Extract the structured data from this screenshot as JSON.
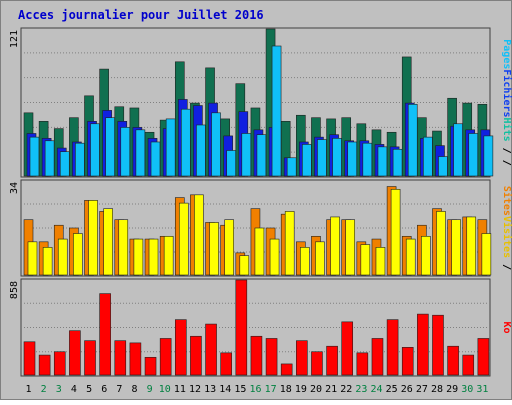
{
  "chart_data": {
    "type": "bar",
    "title": "Acces journalier pour Juillet 2016",
    "colors": {
      "background": "#c0c0c0",
      "title": "#0000cc",
      "grid": "#808080",
      "hits": "#107050",
      "files": "#1020e0",
      "pages": "#10c0f8",
      "visits": "#f08000",
      "sites": "#ffff00",
      "kb": "#ff0000",
      "day_normal": "#000000",
      "day_weekend": "#008040"
    },
    "categories": [
      "1",
      "2",
      "3",
      "4",
      "5",
      "6",
      "7",
      "8",
      "9",
      "10",
      "11",
      "12",
      "13",
      "14",
      "15",
      "16",
      "17",
      "18",
      "19",
      "20",
      "21",
      "22",
      "23",
      "24",
      "25",
      "26",
      "27",
      "28",
      "29",
      "30",
      "31"
    ],
    "weekend_days": [
      "2",
      "3",
      "9",
      "10",
      "16",
      "17",
      "23",
      "24",
      "30",
      "31"
    ],
    "panels": [
      {
        "id": "traffic",
        "ymax_label": "121",
        "ylim": [
          0,
          121
        ],
        "legend": [
          {
            "text": "Hits",
            "color": "#10c0a0"
          },
          {
            "text": "Fichiers",
            "color": "#1040f0"
          },
          {
            "text": "Pages",
            "color": "#10c0f8"
          }
        ],
        "series": [
          {
            "name": "Hits",
            "color": "#107050",
            "values": [
              52,
              45,
              39,
              48,
              66,
              88,
              57,
              56,
              36,
              46,
              94,
              60,
              89,
              47,
              76,
              56,
              121,
              45,
              50,
              48,
              47,
              48,
              43,
              38,
              36,
              98,
              48,
              37,
              64,
              60,
              59
            ]
          },
          {
            "name": "Fichiers",
            "color": "#1020e0",
            "values": [
              35,
              31,
              23,
              28,
              45,
              54,
              45,
              40,
              31,
              39,
              63,
              58,
              60,
              33,
              53,
              38,
              40,
              15,
              28,
              32,
              34,
              29,
              29,
              26,
              24,
              60,
              31,
              25,
              41,
              38,
              38
            ]
          },
          {
            "name": "Pages",
            "color": "#10c0f8",
            "values": [
              32,
              29,
              20,
              27,
              43,
              48,
              40,
              38,
              28,
              47,
              55,
              42,
              52,
              21,
              35,
              34,
              107,
              15,
              26,
              30,
              31,
              28,
              27,
              24,
              22,
              59,
              32,
              16,
              43,
              35,
              33
            ]
          }
        ]
      },
      {
        "id": "visits",
        "ymax_label": "34",
        "ylim": [
          0,
          34
        ],
        "legend": [
          {
            "text": "Visites",
            "color": "#e8c000"
          },
          {
            "text": "Sites",
            "color": "#f08000"
          }
        ],
        "series": [
          {
            "name": "Visites",
            "color": "#f08000",
            "values": [
              20,
              12,
              18,
              17,
              27,
              23,
              20,
              13,
              13,
              14,
              28,
              29,
              19,
              18,
              8,
              24,
              17,
              22,
              12,
              14,
              20,
              20,
              12,
              13,
              32,
              14,
              18,
              24,
              20,
              21,
              20
            ]
          },
          {
            "name": "Sites",
            "color": "#ffff00",
            "values": [
              12,
              10,
              13,
              15,
              27,
              24,
              20,
              13,
              13,
              14,
              26,
              29,
              19,
              20,
              7,
              17,
              13,
              23,
              10,
              12,
              21,
              20,
              11,
              10,
              31,
              13,
              14,
              23,
              20,
              21,
              15
            ]
          }
        ]
      },
      {
        "id": "kb",
        "ymax_label": "858",
        "ylim": [
          0,
          858
        ],
        "legend": [
          {
            "text": "Ko",
            "color": "#ff0000"
          }
        ],
        "series": [
          {
            "name": "Ko",
            "color": "#ff0000",
            "values": [
              300,
              180,
              210,
              400,
              310,
              735,
              310,
              290,
              160,
              330,
              500,
              350,
              460,
              200,
              858,
              350,
              330,
              100,
              310,
              210,
              260,
              480,
              200,
              330,
              500,
              250,
              550,
              540,
              260,
              180,
              330
            ]
          }
        ]
      }
    ]
  }
}
